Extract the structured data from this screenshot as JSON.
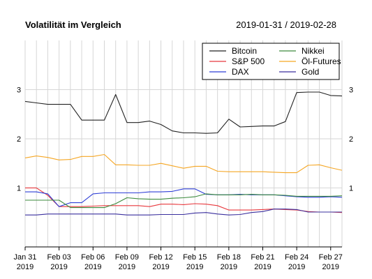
{
  "title": "Volatilität im Vergleich",
  "date_range": "2019-01-31 / 2019-02-28",
  "chart_data": {
    "type": "line",
    "title": "Volatilität im Vergleich",
    "xlabel": "",
    "ylabel": "",
    "ylim": [
      -0.2,
      4.0
    ],
    "xlim": [
      "2019-01-31",
      "2019-02-28"
    ],
    "grid": true,
    "legend_position": "top-right",
    "y_ticks": [
      {
        "value": 1,
        "label": "1"
      },
      {
        "value": 2,
        "label": "2"
      },
      {
        "value": 3,
        "label": "3"
      }
    ],
    "x_ticks": [
      {
        "date": "2019-01-31",
        "line1": "Jan 31",
        "line2": "2019"
      },
      {
        "date": "2019-02-03",
        "line1": "Feb 03",
        "line2": "2019"
      },
      {
        "date": "2019-02-06",
        "line1": "Feb 06",
        "line2": "2019"
      },
      {
        "date": "2019-02-09",
        "line1": "Feb 09",
        "line2": "2019"
      },
      {
        "date": "2019-02-12",
        "line1": "Feb 12",
        "line2": "2019"
      },
      {
        "date": "2019-02-15",
        "line1": "Feb 15",
        "line2": "2019"
      },
      {
        "date": "2019-02-18",
        "line1": "Feb 18",
        "line2": "2019"
      },
      {
        "date": "2019-02-21",
        "line1": "Feb 21",
        "line2": "2019"
      },
      {
        "date": "2019-02-24",
        "line1": "Feb 24",
        "line2": "2019"
      },
      {
        "date": "2019-02-27",
        "line1": "Feb 27",
        "line2": "2019"
      }
    ],
    "x": [
      "2019-01-31",
      "2019-02-01",
      "2019-02-02",
      "2019-02-03",
      "2019-02-04",
      "2019-02-05",
      "2019-02-06",
      "2019-02-07",
      "2019-02-08",
      "2019-02-09",
      "2019-02-10",
      "2019-02-11",
      "2019-02-12",
      "2019-02-13",
      "2019-02-14",
      "2019-02-15",
      "2019-02-16",
      "2019-02-17",
      "2019-02-18",
      "2019-02-19",
      "2019-02-20",
      "2019-02-21",
      "2019-02-22",
      "2019-02-23",
      "2019-02-24",
      "2019-02-25",
      "2019-02-26",
      "2019-02-27",
      "2019-02-28"
    ],
    "series": [
      {
        "name": "Bitcoin",
        "color": "#222222",
        "values": [
          2.76,
          2.73,
          2.7,
          2.7,
          2.7,
          2.38,
          2.38,
          2.38,
          2.9,
          2.33,
          2.33,
          2.36,
          2.29,
          2.16,
          2.12,
          2.12,
          2.11,
          2.12,
          2.4,
          2.24,
          2.25,
          2.26,
          2.26,
          2.35,
          2.94,
          2.95,
          2.95,
          2.88,
          2.87
        ]
      },
      {
        "name": "S&P 500",
        "color": "#e8383d",
        "values": [
          1.0,
          1.0,
          0.85,
          0.62,
          0.62,
          0.62,
          0.63,
          0.64,
          0.64,
          0.64,
          0.64,
          0.62,
          0.67,
          0.67,
          0.66,
          0.68,
          0.67,
          0.64,
          0.55,
          0.55,
          0.55,
          0.56,
          0.57,
          0.56,
          0.55,
          0.52,
          0.51,
          0.51,
          0.5
        ]
      },
      {
        "name": "DAX",
        "color": "#2f3fd6",
        "values": [
          0.92,
          0.92,
          0.88,
          0.62,
          0.7,
          0.7,
          0.88,
          0.9,
          0.9,
          0.9,
          0.9,
          0.92,
          0.92,
          0.93,
          0.98,
          0.98,
          0.87,
          0.86,
          0.86,
          0.87,
          0.86,
          0.86,
          0.86,
          0.84,
          0.82,
          0.81,
          0.81,
          0.82,
          0.81
        ]
      },
      {
        "name": "Nikkei",
        "color": "#3d8b3d",
        "values": [
          0.75,
          0.75,
          0.75,
          0.75,
          0.6,
          0.6,
          0.6,
          0.6,
          0.68,
          0.8,
          0.78,
          0.77,
          0.77,
          0.79,
          0.8,
          0.82,
          0.88,
          0.86,
          0.86,
          0.86,
          0.87,
          0.86,
          0.86,
          0.85,
          0.83,
          0.83,
          0.83,
          0.83,
          0.84
        ]
      },
      {
        "name": "Öl-Futures",
        "color": "#f5a623",
        "values": [
          1.61,
          1.65,
          1.62,
          1.57,
          1.58,
          1.64,
          1.64,
          1.68,
          1.47,
          1.47,
          1.46,
          1.46,
          1.5,
          1.45,
          1.4,
          1.44,
          1.44,
          1.34,
          1.33,
          1.33,
          1.33,
          1.33,
          1.32,
          1.31,
          1.31,
          1.46,
          1.47,
          1.41,
          1.36
        ]
      },
      {
        "name": "Gold",
        "color": "#3a2f9e",
        "values": [
          0.45,
          0.45,
          0.47,
          0.47,
          0.47,
          0.47,
          0.47,
          0.47,
          0.47,
          0.45,
          0.45,
          0.45,
          0.46,
          0.46,
          0.46,
          0.49,
          0.5,
          0.47,
          0.45,
          0.46,
          0.5,
          0.52,
          0.57,
          0.57,
          0.56,
          0.51,
          0.51,
          0.51,
          0.51
        ]
      }
    ]
  }
}
